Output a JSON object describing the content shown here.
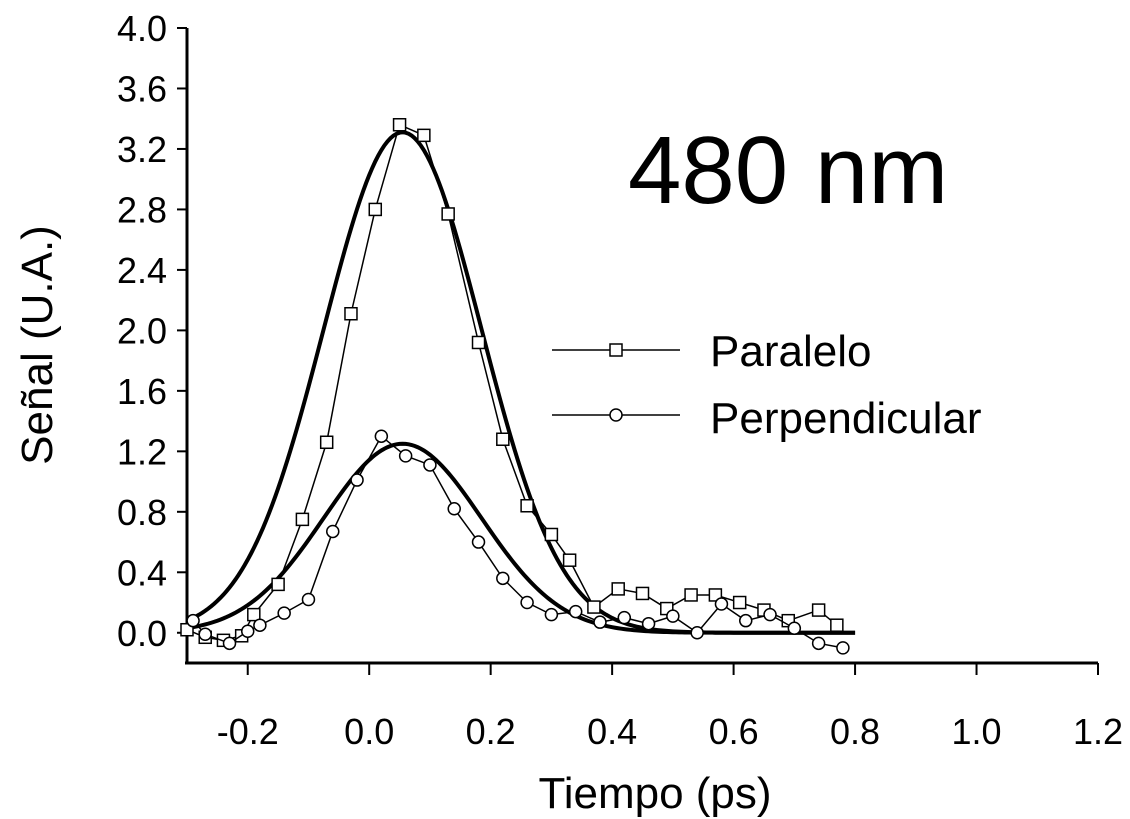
{
  "chart_data": {
    "type": "scatter",
    "title": "",
    "annotation": "480 nm",
    "xlabel": "Tiempo (ps)",
    "ylabel": "Señal (U.A.)",
    "xlim": [
      -0.3,
      1.2
    ],
    "ylim": [
      -0.2,
      4.0
    ],
    "x_ticks": [
      -0.2,
      0.0,
      0.2,
      0.4,
      0.6,
      0.8,
      1.0,
      1.2
    ],
    "x_tick_labels": [
      "-0.2",
      "0.0",
      "0.2",
      "0.4",
      "0.6",
      "0.8",
      "1.0",
      "1.2"
    ],
    "y_ticks": [
      0.0,
      0.4,
      0.8,
      1.2,
      1.6,
      2.0,
      2.4,
      2.8,
      3.2,
      3.6,
      4.0
    ],
    "y_tick_labels": [
      "0.0",
      "0.4",
      "0.8",
      "1.2",
      "1.6",
      "2.0",
      "2.4",
      "2.8",
      "3.2",
      "3.6",
      "4.0"
    ],
    "grid": false,
    "legend_position": "right",
    "series": [
      {
        "name": "Paralelo",
        "marker": "square",
        "x": [
          -0.3,
          -0.27,
          -0.24,
          -0.21,
          -0.19,
          -0.15,
          -0.11,
          -0.07,
          -0.03,
          0.01,
          0.05,
          0.09,
          0.13,
          0.18,
          0.22,
          0.26,
          0.3,
          0.33,
          0.37,
          0.41,
          0.45,
          0.49,
          0.53,
          0.57,
          0.61,
          0.65,
          0.69,
          0.74,
          0.77
        ],
        "y": [
          0.02,
          -0.03,
          -0.05,
          -0.02,
          0.12,
          0.32,
          0.75,
          1.26,
          2.11,
          2.8,
          3.36,
          3.29,
          2.77,
          1.92,
          1.28,
          0.84,
          0.65,
          0.48,
          0.17,
          0.29,
          0.26,
          0.16,
          0.25,
          0.25,
          0.2,
          0.15,
          0.08,
          0.15,
          0.05
        ]
      },
      {
        "name": "Perpendicular",
        "marker": "circle",
        "x": [
          -0.29,
          -0.27,
          -0.23,
          -0.2,
          -0.18,
          -0.14,
          -0.1,
          -0.06,
          -0.02,
          0.02,
          0.06,
          0.1,
          0.14,
          0.18,
          0.22,
          0.26,
          0.3,
          0.34,
          0.38,
          0.42,
          0.46,
          0.5,
          0.54,
          0.58,
          0.62,
          0.66,
          0.7,
          0.74,
          0.78
        ],
        "y": [
          0.08,
          -0.01,
          -0.07,
          0.01,
          0.05,
          0.13,
          0.22,
          0.67,
          1.01,
          1.3,
          1.17,
          1.11,
          0.82,
          0.6,
          0.36,
          0.2,
          0.12,
          0.14,
          0.07,
          0.1,
          0.06,
          0.11,
          0.0,
          0.19,
          0.08,
          0.12,
          0.03,
          -0.07,
          -0.1
        ]
      }
    ],
    "fits": [
      {
        "for": "Paralelo",
        "amplitude": 3.31,
        "center": 0.055,
        "width": 0.13,
        "x_range": [
          -0.3,
          0.8
        ]
      },
      {
        "for": "Perpendicular",
        "amplitude": 1.25,
        "center": 0.055,
        "width": 0.13,
        "x_range": [
          -0.3,
          0.8
        ]
      }
    ],
    "colors": {
      "line": "#000000",
      "marker_fill": "#ffffff"
    }
  }
}
